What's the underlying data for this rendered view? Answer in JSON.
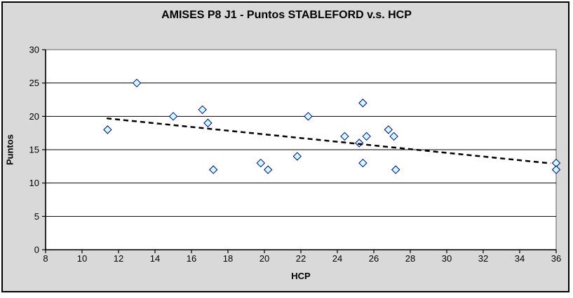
{
  "chart_data": {
    "type": "scatter",
    "title": "AMISES P8 J1 - Puntos STABLEFORD v.s. HCP",
    "xlabel": "HCP",
    "ylabel": "Puntos",
    "xlim": [
      8,
      36
    ],
    "ylim": [
      0,
      30
    ],
    "x_ticks": [
      8,
      10,
      12,
      14,
      16,
      18,
      20,
      22,
      24,
      26,
      28,
      30,
      32,
      34,
      36
    ],
    "y_ticks": [
      0,
      5,
      10,
      15,
      20,
      25,
      30
    ],
    "grid": "horizontal-only",
    "legend": "none",
    "marker": "diamond",
    "points": [
      [
        11.4,
        18
      ],
      [
        13,
        25
      ],
      [
        15,
        20
      ],
      [
        16.6,
        21
      ],
      [
        16.9,
        19
      ],
      [
        17.2,
        12
      ],
      [
        19.8,
        13
      ],
      [
        20.2,
        12
      ],
      [
        21.8,
        14
      ],
      [
        22.4,
        20
      ],
      [
        24.4,
        17
      ],
      [
        25.2,
        16
      ],
      [
        25.4,
        22
      ],
      [
        25.4,
        13
      ],
      [
        25.6,
        17
      ],
      [
        26.8,
        18
      ],
      [
        27.1,
        17
      ],
      [
        27.2,
        12
      ],
      [
        36,
        13
      ],
      [
        36,
        12
      ]
    ],
    "trendline": {
      "type": "linear",
      "style": "dashed",
      "x1": 11.35,
      "y1": 19.7,
      "x2": 35.7,
      "y2": 12.95
    },
    "colors": {
      "chart_bg": "#D9D9D9",
      "plot_bg": "#FFFFFF",
      "plot_border": "#808080",
      "gridline": "#000000",
      "axis": "#000000",
      "marker_fill": "#CCFFFF",
      "marker_stroke": "#000080",
      "trendline": "#000000",
      "text": "#000000"
    }
  }
}
